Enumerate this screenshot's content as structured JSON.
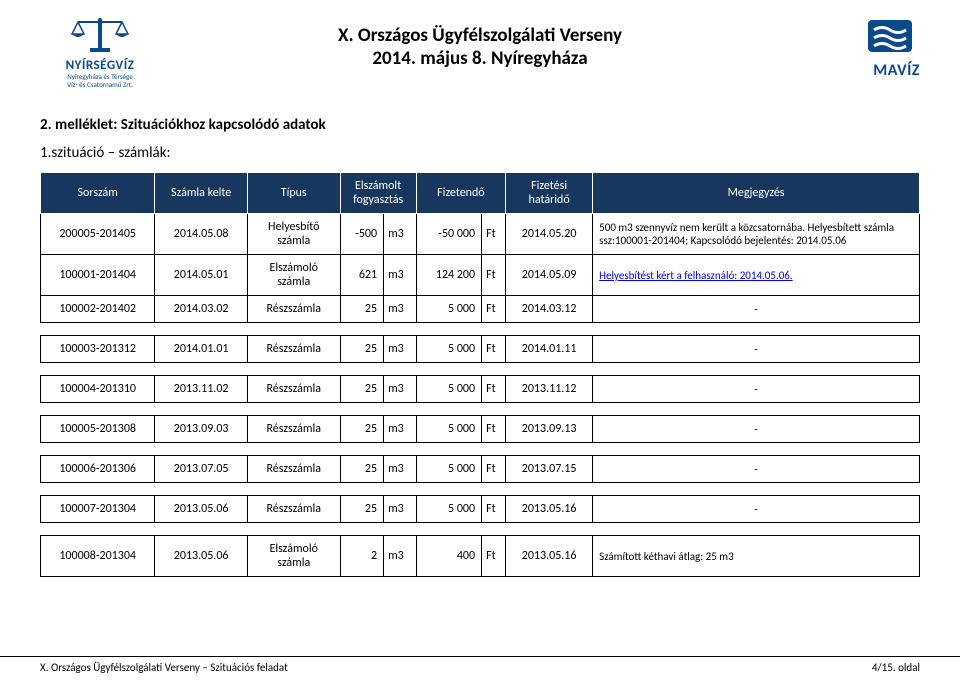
{
  "header": {
    "left_logo": {
      "brand": "NYÍRSÉGVÍZ",
      "sub1": "Nyíregyháza és Térsége",
      "sub2": "Víz- és Csatornamű Zrt."
    },
    "title_line1": "X. Országos Ügyfélszolgálati Verseny",
    "title_line2": "2014. május 8. Nyíregyháza",
    "right_logo": {
      "brand": "MAVÍZ"
    },
    "colors": {
      "logo_blue": "#0a4a8a",
      "header_bg": "#17375e",
      "header_fg": "#ffffff",
      "link": "#0000ee"
    }
  },
  "section": {
    "attachment_title": "2. melléklet: Szituációkhoz kapcsolódó adatok",
    "subtitle": "1.szituáció – számlák:"
  },
  "table": {
    "columns": [
      "Sorszám",
      "Számla kelte",
      "Típus",
      "Elszámolt fogyasztás",
      "Fizetendő",
      "Fizetési határidő",
      "Megjegyzés"
    ],
    "rows_top": [
      {
        "sor": "200005-201405",
        "date": "2014.05.08",
        "type": "Helyesbítő számla",
        "qty": "-500",
        "unit": "m3",
        "amt": "-50 000",
        "cur": "Ft",
        "due": "2014.05.20",
        "note_html": "500 m3 szennyvíz nem került a közcsatornába. Helyesbített számla ssz:100001-201404; Kapcsolódó bejelentés: 2014.05.06",
        "center": false,
        "link": false
      },
      {
        "sor": "100001-201404",
        "date": "2014.05.01",
        "type": "Elszámoló számla",
        "qty": "621",
        "unit": "m3",
        "amt": "124 200",
        "cur": "Ft",
        "due": "2014.05.09",
        "note_html": "Helyesbítést kért a felhasználó: 2014.05.06.",
        "center": false,
        "link": true
      },
      {
        "sor": "100002-201402",
        "date": "2014.03.02",
        "type": "Részszámla",
        "qty": "25",
        "unit": "m3",
        "amt": "5 000",
        "cur": "Ft",
        "due": "2014.03.12",
        "note_html": "-",
        "center": true,
        "link": false
      }
    ],
    "rows_bottom": [
      {
        "sor": "100003-201312",
        "date": "2014.01.01",
        "type": "Részszámla",
        "qty": "25",
        "unit": "m3",
        "amt": "5 000",
        "cur": "Ft",
        "due": "2014.01.11",
        "note_html": "-",
        "center": true,
        "link": false
      },
      {
        "sor": "100004-201310",
        "date": "2013.11.02",
        "type": "Részszámla",
        "qty": "25",
        "unit": "m3",
        "amt": "5 000",
        "cur": "Ft",
        "due": "2013.11.12",
        "note_html": "-",
        "center": true,
        "link": false
      },
      {
        "sor": "100005-201308",
        "date": "2013.09.03",
        "type": "Részszámla",
        "qty": "25",
        "unit": "m3",
        "amt": "5 000",
        "cur": "Ft",
        "due": "2013.09.13",
        "note_html": "-",
        "center": true,
        "link": false
      },
      {
        "sor": "100006-201306",
        "date": "2013.07.05",
        "type": "Részszámla",
        "qty": "25",
        "unit": "m3",
        "amt": "5 000",
        "cur": "Ft",
        "due": "2013.07.15",
        "note_html": "-",
        "center": true,
        "link": false
      },
      {
        "sor": "100007-201304",
        "date": "2013.05.06",
        "type": "Részszámla",
        "qty": "25",
        "unit": "m3",
        "amt": "5 000",
        "cur": "Ft",
        "due": "2013.05.16",
        "note_html": "-",
        "center": true,
        "link": false
      },
      {
        "sor": "100008-201304",
        "date": "2013.05.06",
        "type": "Elszámoló számla",
        "qty": "2",
        "unit": "m3",
        "amt": "400",
        "cur": "Ft",
        "due": "2013.05.16",
        "note_html": "Számított kéthavi átlag: 25 m3",
        "center": false,
        "link": false
      }
    ],
    "col_widths": [
      "105px",
      "85px",
      "85px",
      "40px",
      "30px",
      "60px",
      "22px",
      "80px",
      "300px"
    ]
  },
  "footer": {
    "left": "X. Országos Ügyfélszolgálati Verseny – Szituációs feladat",
    "right": "4/15. oldal"
  }
}
